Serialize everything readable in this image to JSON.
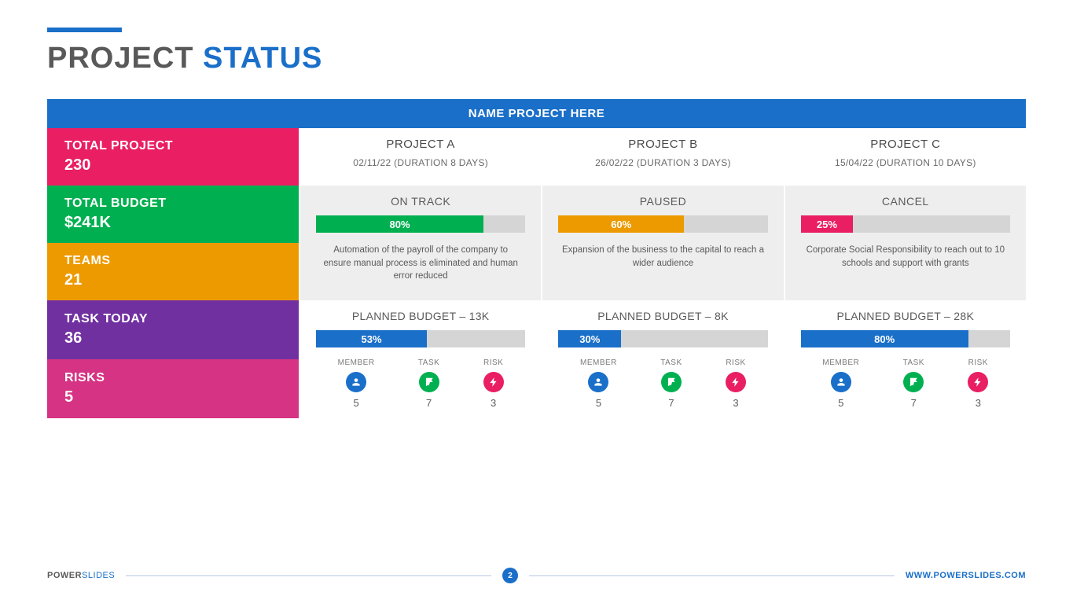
{
  "title": {
    "part1": "PROJECT ",
    "part2": "STATUS"
  },
  "header": "NAME PROJECT HERE",
  "colors": {
    "blue": "#1a6fc9",
    "pink": "#e91e63",
    "green": "#00b050",
    "orange": "#ed9a00",
    "purple": "#7030a0",
    "magenta": "#d63384",
    "bar_bg": "#d5d5d5"
  },
  "side": [
    {
      "label": "TOTAL PROJECT",
      "value": "230",
      "bg": "#e91e63"
    },
    {
      "label": "TOTAL BUDGET",
      "value": "$241K",
      "bg": "#00b050"
    },
    {
      "label": "TEAMS",
      "value": "21",
      "bg": "#ed9a00"
    },
    {
      "label": "TASK TODAY",
      "value": "36",
      "bg": "#7030a0"
    },
    {
      "label": "RISKS",
      "value": "5",
      "bg": "#d63384"
    }
  ],
  "projects": [
    {
      "name": "PROJECT A",
      "date": "02/11/22 (DURATION 8 DAYS)",
      "status": "ON TRACK",
      "status_pct": 80,
      "status_color": "#00b050",
      "desc": "Automation of the payroll of the company to ensure manual process is eliminated and human error reduced",
      "budget_label": "PLANNED BUDGET – 13K",
      "budget_pct": 53,
      "budget_color": "#1a6fc9",
      "stats": {
        "member": "5",
        "task": "7",
        "risk": "3"
      }
    },
    {
      "name": "PROJECT B",
      "date": "26/02/22 (DURATION 3 DAYS)",
      "status": "PAUSED",
      "status_pct": 60,
      "status_color": "#ed9a00",
      "desc": "Expansion of the business to the capital to reach a wider audience",
      "budget_label": "PLANNED BUDGET – 8K",
      "budget_pct": 30,
      "budget_color": "#1a6fc9",
      "stats": {
        "member": "5",
        "task": "7",
        "risk": "3"
      }
    },
    {
      "name": "PROJECT C",
      "date": "15/04/22 (DURATION 10 DAYS)",
      "status": "CANCEL",
      "status_pct": 25,
      "status_color": "#e91e63",
      "desc": "Corporate Social Responsibility to reach out to 10 schools and support with grants",
      "budget_label": "PLANNED BUDGET – 28K",
      "budget_pct": 80,
      "budget_color": "#1a6fc9",
      "stats": {
        "member": "5",
        "task": "7",
        "risk": "3"
      }
    }
  ],
  "stat_labels": {
    "member": "MEMBER",
    "task": "TASK",
    "risk": "RISK"
  },
  "stat_colors": {
    "member": "#1a6fc9",
    "task": "#00b050",
    "risk": "#e91e63"
  },
  "footer": {
    "brand1": "POWER",
    "brand2": "SLIDES",
    "page": "2",
    "url": "WWW.POWERSLIDES.COM"
  }
}
